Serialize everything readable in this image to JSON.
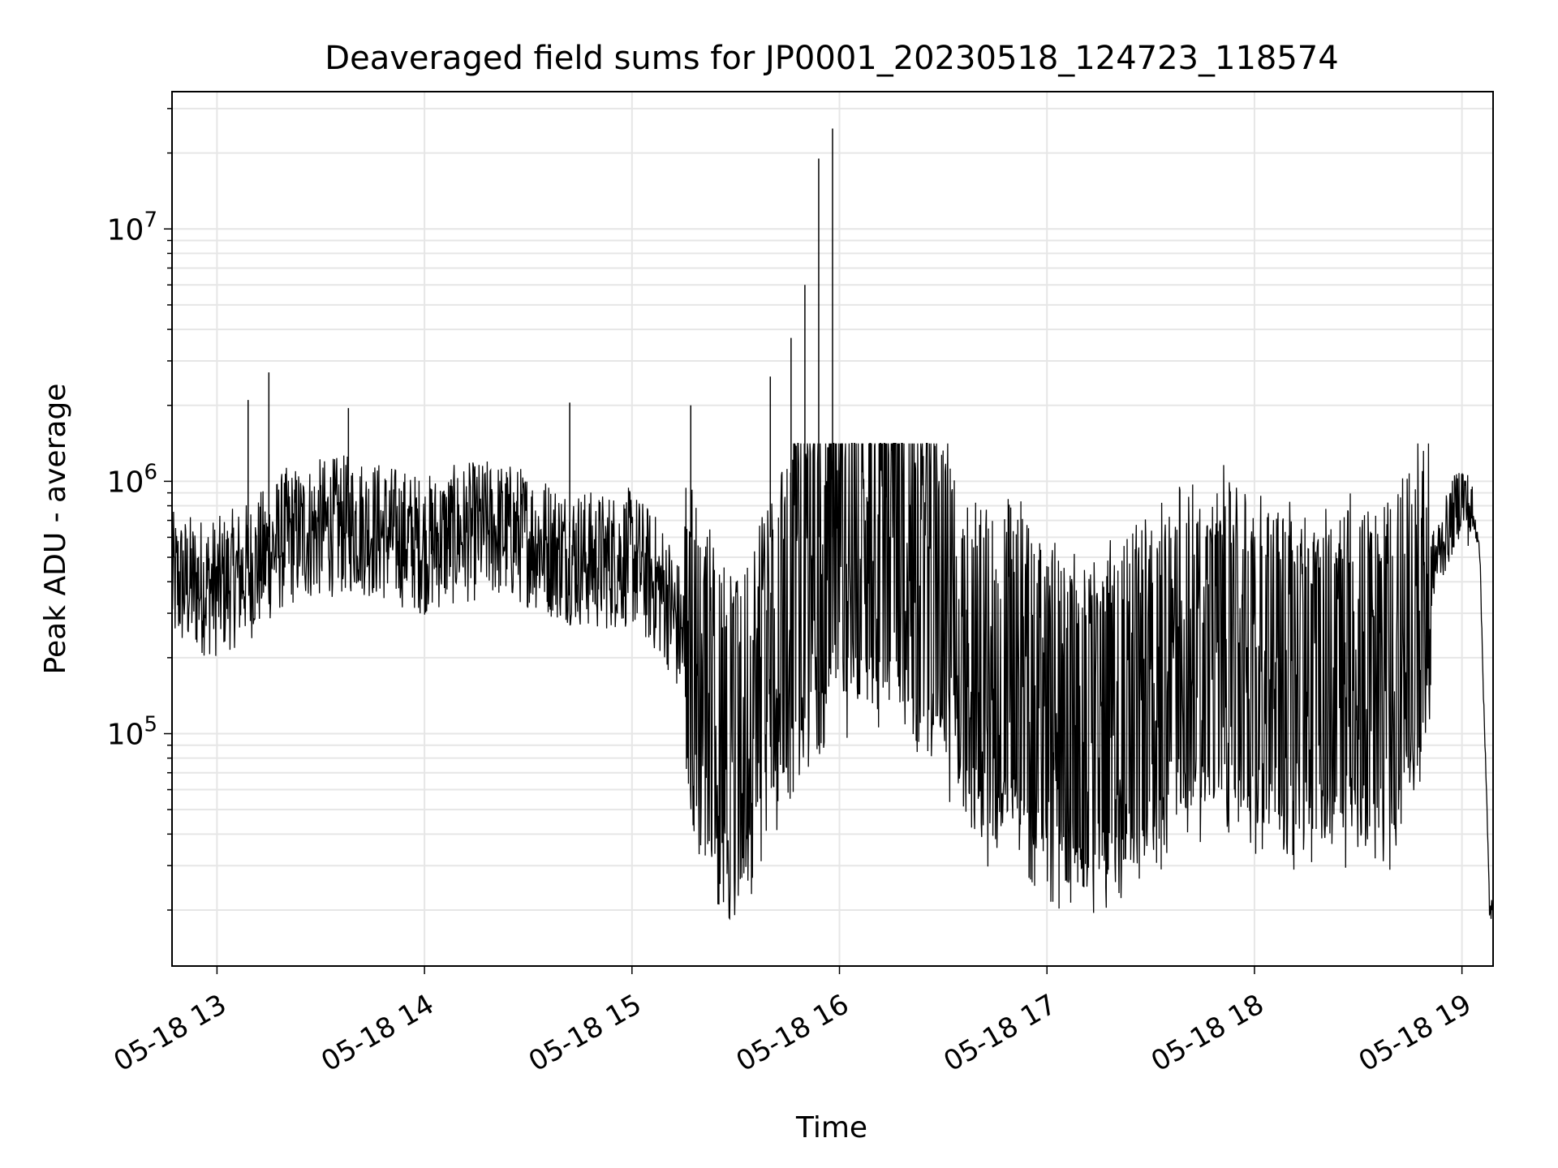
{
  "chart_data": {
    "type": "line",
    "title": "Deaveraged field sums for JP0001_20230518_124723_118574",
    "xlabel": "Time",
    "ylabel": "Peak ADU - average",
    "x_tick_labels": [
      "05-18 13",
      "05-18 14",
      "05-18 15",
      "05-18 16",
      "05-18 17",
      "05-18 18",
      "05-18 19"
    ],
    "x_tick_values": [
      13,
      14,
      15,
      16,
      17,
      18,
      19
    ],
    "y_tick_labels": [
      {
        "base": "10",
        "exp": "5",
        "value": 100000
      },
      {
        "base": "10",
        "exp": "6",
        "value": 1000000
      },
      {
        "base": "10",
        "exp": "7",
        "value": 10000000
      }
    ],
    "xlim": [
      "05-18 12:47",
      "05-18 19:09"
    ],
    "ylim": [
      12000,
      35000000
    ],
    "yscale": "log",
    "grid": true,
    "line_color": "#000000",
    "grid_color": "#e6e6e6",
    "series": [
      {
        "x": [
          "05-18 12:47",
          "05-18 13:00",
          "05-18 13:10",
          "05-18 13:20",
          "05-18 13:30",
          "05-18 13:40",
          "05-18 13:50",
          "05-18 14:00",
          "05-18 14:10",
          "05-18 14:20",
          "05-18 14:30",
          "05-18 14:40",
          "05-18 14:50",
          "05-18 15:00",
          "05-18 15:10",
          "05-18 15:20",
          "05-18 15:30",
          "05-18 15:40",
          "05-18 15:50",
          "05-18 16:00",
          "05-18 16:10",
          "05-18 16:20",
          "05-18 16:30",
          "05-18 16:40",
          "05-18 16:50",
          "05-18 17:00",
          "05-18 17:10",
          "05-18 17:20",
          "05-18 17:30",
          "05-18 17:40",
          "05-18 17:50",
          "05-18 18:00",
          "05-18 18:10",
          "05-18 18:20",
          "05-18 18:30",
          "05-18 18:40",
          "05-18 18:50",
          "05-18 19:00",
          "05-18 19:05",
          "05-18 19:08"
        ],
        "y": [
          400000,
          380000,
          450000,
          600000,
          650000,
          680000,
          620000,
          560000,
          620000,
          650000,
          600000,
          520000,
          480000,
          500000,
          350000,
          150000,
          90000,
          200000,
          400000,
          500000,
          550000,
          500000,
          350000,
          150000,
          180000,
          120000,
          90000,
          110000,
          130000,
          200000,
          220000,
          180000,
          160000,
          150000,
          170000,
          160000,
          400000,
          900000,
          600000,
          20000
        ]
      }
    ],
    "spikes": [
      {
        "x": "05-18 13:09",
        "y": 2100000
      },
      {
        "x": "05-18 13:15",
        "y": 2700000
      },
      {
        "x": "05-18 13:38",
        "y": 1950000
      },
      {
        "x": "05-18 14:42",
        "y": 2050000
      },
      {
        "x": "05-18 15:17",
        "y": 2000000
      },
      {
        "x": "05-18 15:40",
        "y": 2600000
      },
      {
        "x": "05-18 15:46",
        "y": 3700000
      },
      {
        "x": "05-18 15:50",
        "y": 6000000
      },
      {
        "x": "05-18 15:54",
        "y": 19000000
      },
      {
        "x": "05-18 15:58",
        "y": 25000000
      }
    ]
  }
}
